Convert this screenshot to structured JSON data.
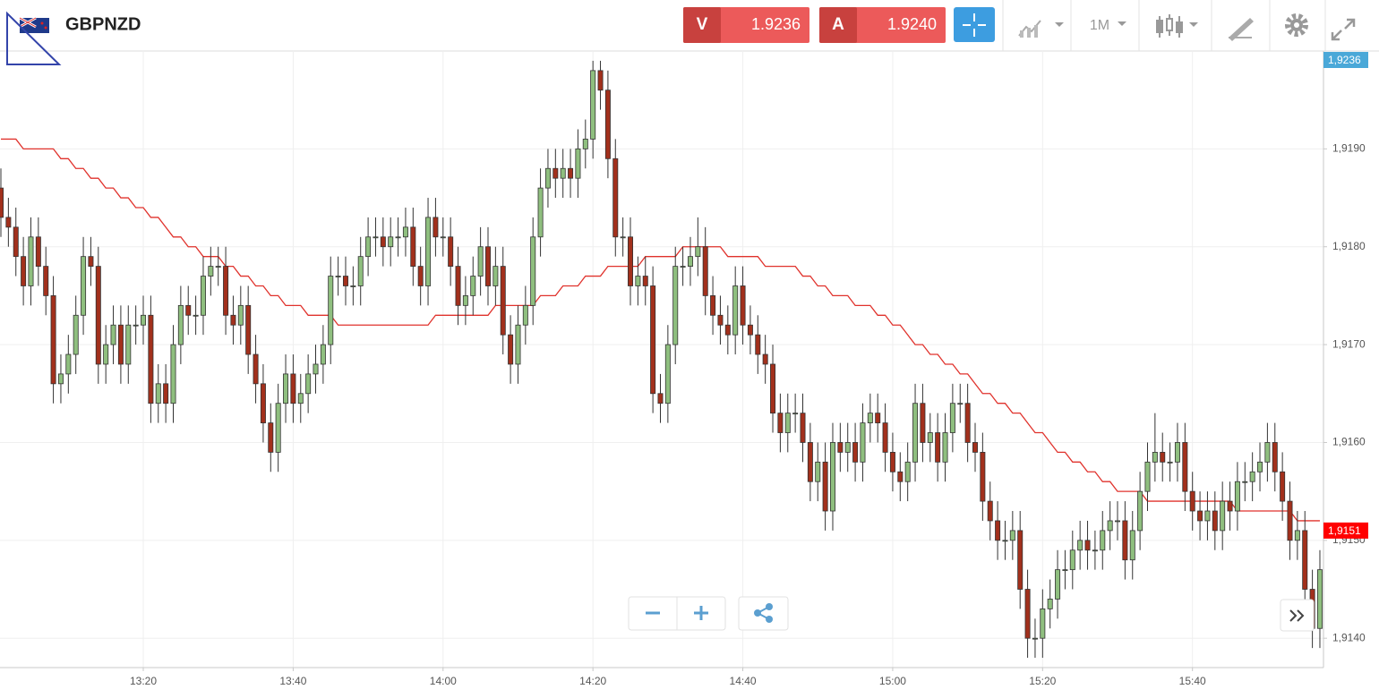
{
  "chart_data": {
    "type": "candlestick",
    "title": "GBPNZD",
    "quotes": [
      {
        "side": "V",
        "price": 1.9236
      },
      {
        "side": "A",
        "price": {
          "value": 1.924,
          "label": "1.9240"
        }
      }
    ],
    "timeframe": "1M",
    "up_color": "#8fbf7f",
    "down_color": "#a2301c",
    "grid": true,
    "ylim": [
      1.9137,
      1.92
    ],
    "yticks": [
      {
        "value": 1.914,
        "label": "1,9140"
      },
      {
        "value": 1.915,
        "label": "1,9150"
      },
      {
        "value": 1.916,
        "label": "1,9160"
      },
      {
        "value": 1.917,
        "label": "1,9170"
      },
      {
        "value": 1.918,
        "label": "1,9180"
      },
      {
        "value": 1.919,
        "label": "1,9190"
      }
    ],
    "price_badges": [
      {
        "value": 1.9236,
        "label": "1,9236",
        "color": "#4aa8d8"
      },
      {
        "value": 1.9151,
        "label": "1,9151",
        "color": "#ff0000"
      }
    ],
    "categories": [
      null,
      null,
      null,
      null,
      null,
      null,
      null,
      null,
      null,
      null,
      null,
      null,
      null,
      null,
      null,
      null,
      null,
      null,
      null,
      "13:20",
      null,
      null,
      null,
      null,
      null,
      null,
      null,
      null,
      null,
      null,
      null,
      null,
      null,
      null,
      null,
      null,
      null,
      null,
      null,
      "13:40",
      null,
      null,
      null,
      null,
      null,
      null,
      null,
      null,
      null,
      null,
      null,
      null,
      null,
      null,
      null,
      null,
      null,
      null,
      null,
      "14:00",
      null,
      null,
      null,
      null,
      null,
      null,
      null,
      null,
      null,
      null,
      null,
      null,
      null,
      null,
      null,
      null,
      null,
      null,
      null,
      "14:20",
      null,
      null,
      null,
      null,
      null,
      null,
      null,
      null,
      null,
      null,
      null,
      null,
      null,
      null,
      null,
      null,
      null,
      null,
      null,
      "14:40",
      null,
      null,
      null,
      null,
      null,
      null,
      null,
      null,
      null,
      null,
      null,
      null,
      null,
      null,
      null,
      null,
      null,
      null,
      null,
      "15:00",
      null,
      null,
      null,
      null,
      null,
      null,
      null,
      null,
      null,
      null,
      null,
      null,
      null,
      null,
      null,
      null,
      null,
      null,
      null,
      "15:20",
      null,
      null,
      null,
      null,
      null,
      null,
      null,
      null,
      null,
      null,
      null,
      null,
      null,
      null,
      null,
      null,
      null,
      null,
      null,
      "15:40",
      null,
      null,
      null,
      null,
      null,
      null,
      null,
      null,
      null,
      null,
      null,
      null,
      null,
      null,
      null,
      null,
      null
    ],
    "open": [
      1.9186,
      1.9183,
      1.9182,
      1.9179,
      1.9176,
      1.9181,
      1.9178,
      1.9175,
      1.9166,
      1.9167,
      1.9169,
      1.9173,
      1.9179,
      1.9178,
      1.9168,
      1.917,
      1.9172,
      1.9168,
      1.9172,
      1.9172,
      1.9173,
      1.9164,
      1.9166,
      1.9164,
      1.917,
      1.9174,
      1.9173,
      1.9173,
      1.9177,
      1.9178,
      1.9178,
      1.9173,
      1.9172,
      1.9174,
      1.9169,
      1.9166,
      1.9162,
      1.9159,
      1.9164,
      1.9167,
      1.9164,
      1.9165,
      1.9167,
      1.9168,
      1.917,
      1.9177,
      1.9177,
      1.9176,
      1.9176,
      1.9179,
      1.9181,
      1.9181,
      1.918,
      1.9181,
      1.9181,
      1.9182,
      1.9178,
      1.9176,
      1.9183,
      1.9181,
      1.9181,
      1.9178,
      1.9174,
      1.9175,
      1.9177,
      1.918,
      1.9176,
      1.9178,
      1.9171,
      1.9168,
      1.9172,
      1.9174,
      1.9181,
      1.9186,
      1.9188,
      1.9187,
      1.9188,
      1.9187,
      1.919,
      1.9191,
      1.9198,
      1.9196,
      1.9189,
      1.9181,
      1.9181,
      1.9176,
      1.9177,
      1.9176,
      1.9165,
      1.9164,
      1.917,
      1.9178,
      1.9178,
      1.9179,
      1.918,
      1.9175,
      1.9173,
      1.9172,
      1.9171,
      1.9176,
      1.9172,
      1.9171,
      1.9169,
      1.9168,
      1.9163,
      1.9161,
      1.9163,
      1.9163,
      1.916,
      1.9156,
      1.9158,
      1.9153,
      1.916,
      1.9159,
      1.916,
      1.9158,
      1.9162,
      1.9163,
      1.9162,
      1.9159,
      1.9157,
      1.9156,
      1.9158,
      1.9164,
      1.916,
      1.9161,
      1.9158,
      1.9161,
      1.9164,
      1.9164,
      1.916,
      1.9159,
      1.9154,
      1.9152,
      1.915,
      1.915,
      1.9151,
      1.9145,
      1.914,
      1.914,
      1.9143,
      1.9144,
      1.9147,
      1.9147,
      1.9149,
      1.915,
      1.9149,
      1.9149,
      1.9151,
      1.9152,
      1.9152,
      1.9148,
      1.9151,
      1.9155,
      1.9158,
      1.9159,
      1.9158,
      1.9158,
      1.916,
      1.9155,
      1.9153,
      1.9152,
      1.9153,
      1.9151,
      1.9154,
      1.9153,
      1.9156,
      1.9156,
      1.9157,
      1.9158,
      1.916,
      1.9157,
      1.9154,
      1.915,
      1.9151,
      1.9145,
      1.9141
    ],
    "high": [
      1.9188,
      1.9185,
      1.9184,
      1.9181,
      1.9183,
      1.9183,
      1.918,
      1.9177,
      1.9169,
      1.9171,
      1.9175,
      1.9181,
      1.9181,
      1.918,
      1.9172,
      1.9174,
      1.9174,
      1.9174,
      1.9174,
      1.9175,
      1.9175,
      1.9168,
      1.9168,
      1.9172,
      1.9176,
      1.9176,
      1.9175,
      1.9179,
      1.918,
      1.918,
      1.918,
      1.9175,
      1.9176,
      1.9176,
      1.9171,
      1.9168,
      1.9164,
      1.9166,
      1.9169,
      1.9169,
      1.9167,
      1.9169,
      1.917,
      1.9172,
      1.9179,
      1.9179,
      1.9179,
      1.9178,
      1.9181,
      1.9183,
      1.9183,
      1.9183,
      1.9183,
      1.9183,
      1.9184,
      1.9184,
      1.918,
      1.9185,
      1.9185,
      1.9183,
      1.9183,
      1.918,
      1.9177,
      1.9179,
      1.9182,
      1.9182,
      1.918,
      1.918,
      1.9173,
      1.9174,
      1.9176,
      1.9183,
      1.9188,
      1.919,
      1.919,
      1.919,
      1.919,
      1.9192,
      1.9193,
      1.9199,
      1.9199,
      1.9198,
      1.9191,
      1.9183,
      1.9183,
      1.9179,
      1.9179,
      1.9178,
      1.9167,
      1.9172,
      1.918,
      1.918,
      1.9181,
      1.9183,
      1.9182,
      1.9177,
      1.9175,
      1.9174,
      1.9178,
      1.9178,
      1.9174,
      1.9173,
      1.9171,
      1.917,
      1.9165,
      1.9165,
      1.9165,
      1.9165,
      1.9162,
      1.916,
      1.916,
      1.9162,
      1.9162,
      1.9162,
      1.9162,
      1.9164,
      1.9165,
      1.9165,
      1.9164,
      1.9161,
      1.9159,
      1.916,
      1.9166,
      1.9166,
      1.9163,
      1.9163,
      1.9163,
      1.9166,
      1.9166,
      1.9166,
      1.9162,
      1.9161,
      1.9156,
      1.9154,
      1.9152,
      1.9153,
      1.9153,
      1.9147,
      1.9142,
      1.9145,
      1.9146,
      1.9149,
      1.9149,
      1.9151,
      1.9152,
      1.9152,
      1.9151,
      1.9153,
      1.9154,
      1.9154,
      1.9154,
      1.9153,
      1.9157,
      1.916,
      1.9163,
      1.9161,
      1.916,
      1.9162,
      1.9162,
      1.9157,
      1.9155,
      1.9155,
      1.9155,
      1.9156,
      1.9156,
      1.9158,
      1.9158,
      1.9159,
      1.916,
      1.9162,
      1.9162,
      1.9159,
      1.9156,
      1.9153,
      1.9153,
      1.9147,
      1.9149
    ],
    "low": [
      1.9181,
      1.918,
      1.9177,
      1.9174,
      1.9174,
      1.9176,
      1.9173,
      1.9164,
      1.9164,
      1.9165,
      1.9167,
      1.9171,
      1.9176,
      1.9166,
      1.9166,
      1.9168,
      1.9166,
      1.9166,
      1.917,
      1.917,
      1.9162,
      1.9162,
      1.9162,
      1.9162,
      1.9168,
      1.9171,
      1.9171,
      1.9171,
      1.9175,
      1.9176,
      1.9171,
      1.917,
      1.917,
      1.9167,
      1.9164,
      1.916,
      1.9157,
      1.9157,
      1.9162,
      1.9162,
      1.9162,
      1.9163,
      1.9165,
      1.9166,
      1.9168,
      1.9175,
      1.9174,
      1.9174,
      1.9174,
      1.9177,
      1.9179,
      1.9178,
      1.9178,
      1.9179,
      1.9179,
      1.9176,
      1.9174,
      1.9174,
      1.9179,
      1.9179,
      1.9176,
      1.9172,
      1.9172,
      1.9173,
      1.9175,
      1.9174,
      1.9174,
      1.9169,
      1.9166,
      1.9166,
      1.917,
      1.9172,
      1.9179,
      1.9184,
      1.9185,
      1.9185,
      1.9185,
      1.9185,
      1.9188,
      1.9189,
      1.9194,
      1.9187,
      1.9179,
      1.9179,
      1.9174,
      1.9174,
      1.9174,
      1.9163,
      1.9162,
      1.9162,
      1.9168,
      1.9176,
      1.9176,
      1.9177,
      1.9173,
      1.9171,
      1.917,
      1.9169,
      1.9169,
      1.917,
      1.9169,
      1.9167,
      1.9166,
      1.9161,
      1.9159,
      1.9159,
      1.9161,
      1.9158,
      1.9154,
      1.9154,
      1.9151,
      1.9151,
      1.9157,
      1.9157,
      1.9156,
      1.9156,
      1.916,
      1.916,
      1.9157,
      1.9155,
      1.9154,
      1.9154,
      1.9156,
      1.9158,
      1.9158,
      1.9156,
      1.9156,
      1.9159,
      1.9162,
      1.9158,
      1.9157,
      1.9152,
      1.915,
      1.9148,
      1.9148,
      1.9148,
      1.9143,
      1.9138,
      1.9138,
      1.9138,
      1.9141,
      1.9142,
      1.9145,
      1.9145,
      1.9147,
      1.9147,
      1.9147,
      1.9147,
      1.9149,
      1.915,
      1.9146,
      1.9146,
      1.9149,
      1.9153,
      1.9156,
      1.9156,
      1.9156,
      1.9156,
      1.9153,
      1.9151,
      1.915,
      1.915,
      1.9149,
      1.9149,
      1.9151,
      1.9151,
      1.9154,
      1.9154,
      1.9155,
      1.9156,
      1.9155,
      1.9152,
      1.9148,
      1.9148,
      1.9143,
      1.9139,
      1.9139
    ],
    "close": [
      1.9183,
      1.9182,
      1.9179,
      1.9176,
      1.9181,
      1.9178,
      1.9175,
      1.9166,
      1.9167,
      1.9169,
      1.9173,
      1.9179,
      1.9178,
      1.9168,
      1.917,
      1.9172,
      1.9168,
      1.9172,
      1.9172,
      1.9173,
      1.9164,
      1.9166,
      1.9164,
      1.917,
      1.9174,
      1.9173,
      1.9173,
      1.9177,
      1.9178,
      1.9178,
      1.9173,
      1.9172,
      1.9174,
      1.9169,
      1.9166,
      1.9162,
      1.9159,
      1.9164,
      1.9167,
      1.9164,
      1.9165,
      1.9167,
      1.9168,
      1.917,
      1.9177,
      1.9177,
      1.9176,
      1.9176,
      1.9179,
      1.9181,
      1.9181,
      1.918,
      1.9181,
      1.9181,
      1.9182,
      1.9178,
      1.9176,
      1.9183,
      1.9181,
      1.9181,
      1.9178,
      1.9174,
      1.9175,
      1.9177,
      1.918,
      1.9176,
      1.9178,
      1.9171,
      1.9168,
      1.9172,
      1.9174,
      1.9181,
      1.9186,
      1.9188,
      1.9187,
      1.9188,
      1.9187,
      1.919,
      1.9191,
      1.9198,
      1.9196,
      1.9189,
      1.9181,
      1.9181,
      1.9176,
      1.9177,
      1.9176,
      1.9165,
      1.9164,
      1.917,
      1.9178,
      1.9178,
      1.9179,
      1.918,
      1.9175,
      1.9173,
      1.9172,
      1.9171,
      1.9176,
      1.9172,
      1.9171,
      1.9169,
      1.9168,
      1.9163,
      1.9161,
      1.9163,
      1.9163,
      1.916,
      1.9156,
      1.9158,
      1.9153,
      1.916,
      1.9159,
      1.916,
      1.9158,
      1.9162,
      1.9163,
      1.9162,
      1.9159,
      1.9157,
      1.9156,
      1.9158,
      1.9164,
      1.916,
      1.9161,
      1.9158,
      1.9161,
      1.9164,
      1.9164,
      1.916,
      1.9159,
      1.9154,
      1.9152,
      1.915,
      1.915,
      1.9151,
      1.9145,
      1.914,
      1.914,
      1.9143,
      1.9144,
      1.9147,
      1.9147,
      1.9149,
      1.915,
      1.9149,
      1.9149,
      1.9151,
      1.9152,
      1.9152,
      1.9148,
      1.9151,
      1.9155,
      1.9158,
      1.9159,
      1.9158,
      1.9158,
      1.916,
      1.9155,
      1.9153,
      1.9152,
      1.9153,
      1.9151,
      1.9154,
      1.9153,
      1.9156,
      1.9156,
      1.9157,
      1.9158,
      1.916,
      1.9157,
      1.9154,
      1.915,
      1.9151,
      1.9145,
      1.9141,
      1.9147
    ],
    "ma": {
      "color": "#e0322c",
      "values": [
        1.9191,
        1.9191,
        1.9191,
        1.919,
        1.919,
        1.919,
        1.919,
        1.919,
        1.9189,
        1.9189,
        1.9188,
        1.9188,
        1.9187,
        1.9187,
        1.9186,
        1.9186,
        1.9185,
        1.9185,
        1.9184,
        1.9184,
        1.9183,
        1.9183,
        1.9182,
        1.9181,
        1.9181,
        1.918,
        1.918,
        1.9179,
        1.9179,
        1.9179,
        1.9178,
        1.9178,
        1.9177,
        1.9177,
        1.9176,
        1.9176,
        1.9175,
        1.9175,
        1.9174,
        1.9174,
        1.9174,
        1.9173,
        1.9173,
        1.9173,
        1.9173,
        1.9172,
        1.9172,
        1.9172,
        1.9172,
        1.9172,
        1.9172,
        1.9172,
        1.9172,
        1.9172,
        1.9172,
        1.9172,
        1.9172,
        1.9172,
        1.9173,
        1.9173,
        1.9173,
        1.9173,
        1.9173,
        1.9173,
        1.9173,
        1.9173,
        1.9174,
        1.9174,
        1.9174,
        1.9174,
        1.9174,
        1.9174,
        1.9175,
        1.9175,
        1.9175,
        1.9176,
        1.9176,
        1.9176,
        1.9177,
        1.9177,
        1.9177,
        1.9178,
        1.9178,
        1.9178,
        1.9178,
        1.9178,
        1.9179,
        1.9179,
        1.9179,
        1.9179,
        1.9179,
        1.918,
        1.918,
        1.918,
        1.918,
        1.918,
        1.918,
        1.9179,
        1.9179,
        1.9179,
        1.9179,
        1.9179,
        1.9178,
        1.9178,
        1.9178,
        1.9178,
        1.9178,
        1.9177,
        1.9177,
        1.9176,
        1.9176,
        1.9175,
        1.9175,
        1.9175,
        1.9174,
        1.9174,
        1.9174,
        1.9173,
        1.9173,
        1.9172,
        1.9172,
        1.9171,
        1.917,
        1.917,
        1.9169,
        1.9169,
        1.9168,
        1.9168,
        1.9167,
        1.9167,
        1.9166,
        1.9165,
        1.9165,
        1.9164,
        1.9164,
        1.9163,
        1.9163,
        1.9162,
        1.9161,
        1.9161,
        1.916,
        1.9159,
        1.9159,
        1.9158,
        1.9158,
        1.9157,
        1.9157,
        1.9156,
        1.9156,
        1.9155,
        1.9155,
        1.9155,
        1.9155,
        1.9154,
        1.9154,
        1.9154,
        1.9154,
        1.9154,
        1.9154,
        1.9154,
        1.9154,
        1.9154,
        1.9154,
        1.9154,
        1.9154,
        1.9153,
        1.9153,
        1.9153,
        1.9153,
        1.9153,
        1.9153,
        1.9153,
        1.9153,
        1.9152,
        1.9152,
        1.9152,
        1.9152
      ]
    }
  }
}
